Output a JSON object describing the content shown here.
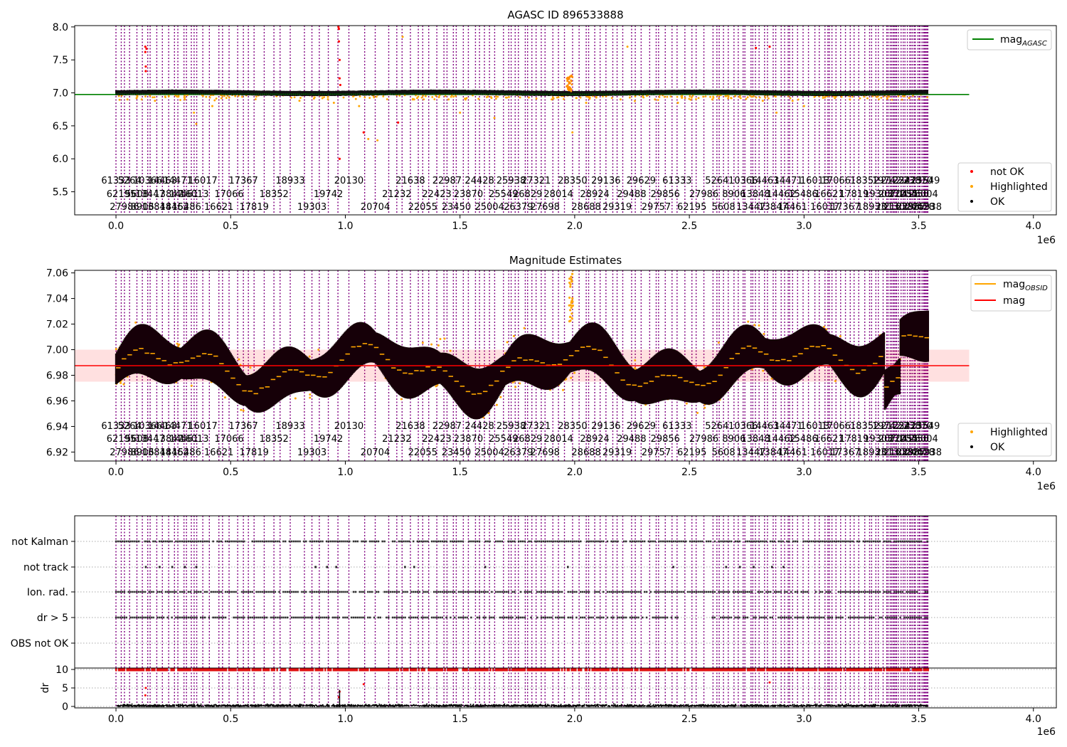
{
  "chart_data": [
    {
      "id": "p1",
      "type": "scatter",
      "title": "AGASC ID 896533888",
      "xlim": [
        -180000,
        4100000
      ],
      "ylim": [
        5.15,
        8.02
      ],
      "xticks": [
        0,
        500000,
        1000000,
        1500000,
        2000000,
        2500000,
        3000000,
        3500000,
        4000000
      ],
      "xtick_labels": [
        "0.0",
        "0.5",
        "1.0",
        "1.5",
        "2.0",
        "2.5",
        "3.0",
        "3.5",
        "4.0"
      ],
      "yticks": [
        5.5,
        6.0,
        6.5,
        7.0,
        7.5,
        8.0
      ],
      "ytick_labels": [
        "5.5",
        "6.0",
        "6.5",
        "7.0",
        "7.5",
        "8.0"
      ],
      "x_offset_label": "1e6",
      "legend_upper": [
        {
          "label": "mag",
          "subscript": "AGASC",
          "color": "#008000",
          "kind": "line"
        }
      ],
      "legend_lower": [
        {
          "label": "not OK",
          "color": "#ff0000",
          "kind": "dot"
        },
        {
          "label": "Highlighted",
          "color": "#ffa500",
          "kind": "dot"
        },
        {
          "label": "OK",
          "color": "#000000",
          "kind": "dot"
        }
      ],
      "reference_line": {
        "series": "mag_AGASC",
        "value": 6.975,
        "color": "#008000",
        "x_range": [
          -180000,
          3720000
        ]
      },
      "series": [
        {
          "name": "OK",
          "color": "#000000",
          "values_summary": "dense band at ~6.97-7.02 across x 0 to 3.54e6"
        },
        {
          "name": "Highlighted",
          "color": "#ffa500",
          "points": [
            [
              50000,
              6.9
            ],
            [
              90000,
              6.92
            ],
            [
              170000,
              6.88
            ],
            [
              230000,
              6.95
            ],
            [
              300000,
              6.9
            ],
            [
              340000,
              6.7
            ],
            [
              350000,
              6.53
            ],
            [
              420000,
              6.8
            ],
            [
              460000,
              6.92
            ],
            [
              520000,
              6.95
            ],
            [
              700000,
              6.95
            ],
            [
              800000,
              6.88
            ],
            [
              860000,
              6.96
            ],
            [
              900000,
              6.92
            ],
            [
              950000,
              6.85
            ],
            [
              980000,
              6.97
            ],
            [
              1060000,
              6.8
            ],
            [
              1100000,
              6.3
            ],
            [
              1140000,
              6.28
            ],
            [
              1250000,
              7.85
            ],
            [
              1300000,
              6.9
            ],
            [
              1350000,
              6.95
            ],
            [
              1450000,
              6.9
            ],
            [
              1500000,
              6.7
            ],
            [
              1650000,
              6.62
            ],
            [
              1800000,
              6.93
            ],
            [
              1900000,
              6.9
            ],
            [
              1950000,
              6.95
            ],
            [
              1990000,
              6.4
            ],
            [
              2050000,
              6.85
            ],
            [
              2200000,
              6.9
            ],
            [
              2230000,
              7.7
            ],
            [
              2350000,
              6.9
            ],
            [
              2450000,
              6.85
            ],
            [
              2600000,
              6.9
            ],
            [
              2700000,
              6.95
            ],
            [
              2820000,
              6.88
            ],
            [
              2880000,
              6.7
            ],
            [
              2950000,
              6.88
            ],
            [
              3000000,
              6.8
            ],
            [
              3100000,
              6.95
            ],
            [
              3200000,
              6.9
            ],
            [
              3300000,
              6.95
            ]
          ]
        },
        {
          "name": "not OK",
          "color": "#ff0000",
          "points": [
            [
              128000,
              7.7
            ],
            [
              128000,
              7.62
            ],
            [
              130000,
              7.4
            ],
            [
              130000,
              7.33
            ],
            [
              133000,
              7.67
            ],
            [
              970000,
              8.0
            ],
            [
              972000,
              7.97
            ],
            [
              972000,
              7.78
            ],
            [
              975000,
              7.5
            ],
            [
              975000,
              7.22
            ],
            [
              978000,
              7.12
            ],
            [
              975000,
              6.0
            ],
            [
              1080000,
              6.4
            ],
            [
              1230000,
              6.55
            ],
            [
              2790000,
              7.68
            ],
            [
              2850000,
              7.7
            ]
          ]
        },
        {
          "name": "not OK excursion near 2.0e6",
          "color": "#ff0000",
          "x_range": [
            1965000,
            1990000
          ],
          "y_range": [
            7.0,
            7.27
          ]
        }
      ]
    },
    {
      "id": "p2",
      "type": "scatter",
      "title": "Magnitude Estimates",
      "xlim": [
        -180000,
        4100000
      ],
      "ylim": [
        6.913,
        7.062
      ],
      "xticks": [
        0,
        500000,
        1000000,
        1500000,
        2000000,
        2500000,
        3000000,
        3500000,
        4000000
      ],
      "xtick_labels": [
        "0.0",
        "0.5",
        "1.0",
        "1.5",
        "2.0",
        "2.5",
        "3.0",
        "3.5",
        "4.0"
      ],
      "yticks": [
        6.92,
        6.94,
        6.96,
        6.98,
        7.0,
        7.02,
        7.04,
        7.06
      ],
      "ytick_labels": [
        "6.92",
        "6.94",
        "6.96",
        "6.98",
        "7.00",
        "7.02",
        "7.04",
        "7.06"
      ],
      "x_offset_label": "1e6",
      "legend_upper": [
        {
          "label": "mag",
          "subscript": "OBSID",
          "color": "#ffa500",
          "kind": "line"
        },
        {
          "label": "mag",
          "subscript": "",
          "color": "#ff0000",
          "kind": "line"
        }
      ],
      "legend_lower": [
        {
          "label": "Highlighted",
          "color": "#ffa500",
          "kind": "dot"
        },
        {
          "label": "OK",
          "color": "#000000",
          "kind": "dot"
        }
      ],
      "mag": {
        "value": 6.9875,
        "band": [
          6.975,
          7.0
        ],
        "color": "#ff0000",
        "x_range": [
          -180000,
          3720000
        ]
      },
      "series": [
        {
          "name": "OK",
          "color": "#000000",
          "values_summary": "dense envelope of per-observation estimates, ~6.96-7.02"
        },
        {
          "name": "Highlighted",
          "color": "#ffa500",
          "values_summary": "scatter around the OK envelope, reaching 6.915 and 7.06"
        }
      ]
    },
    {
      "id": "p3",
      "type": "scatter",
      "categories": [
        "not Kalman",
        "not track",
        "Ion. rad.",
        "dr > 5",
        "OBS not OK"
      ],
      "xlim": [
        -180000,
        4100000
      ],
      "xticks": [
        0,
        500000,
        1000000,
        1500000,
        2000000,
        2500000,
        3000000,
        3500000,
        4000000
      ],
      "xtick_labels": [
        "0.0",
        "0.5",
        "1.0",
        "1.5",
        "2.0",
        "2.5",
        "3.0",
        "3.5",
        "4.0"
      ],
      "x_offset_label": "1e6",
      "flag_points": {
        "not track": [
          130000,
          190000,
          245000,
          300000,
          350000,
          870000,
          920000,
          960000,
          1260000,
          1300000,
          1610000,
          1970000,
          2430000,
          2660000,
          2720000,
          2780000,
          2860000,
          2910000
        ],
        "OBS not OK": []
      },
      "flag_ranges": {
        "not Kalman": [
          [
            0,
            3540000
          ]
        ],
        "Ion. rad.": [
          [
            0,
            3540000
          ]
        ],
        "dr > 5": [
          [
            0,
            2450000
          ],
          [
            2600000,
            3540000
          ]
        ]
      }
    },
    {
      "id": "p4",
      "type": "scatter",
      "ylabel": "dr",
      "ylim": [
        -0.5,
        10.3
      ],
      "yticks": [
        0,
        5,
        10
      ],
      "ytick_labels": [
        "0",
        "5",
        "10"
      ],
      "xlim": [
        -180000,
        4100000
      ],
      "threshold_line": 10,
      "series": [
        {
          "name": "dr",
          "color": "#000000",
          "values_summary": "mostly 0-1"
        },
        {
          "name": "dr not OK",
          "color": "#ff0000",
          "points": [
            [
              128000,
              3
            ],
            [
              130000,
              5
            ],
            [
              975000,
              4
            ],
            [
              972000,
              2.5
            ],
            [
              1080000,
              6
            ],
            [
              2850000,
              6.5
            ]
          ]
        }
      ]
    }
  ],
  "obsid_labels": [
    "61333",
    "62195",
    "27986",
    "5264",
    "5608",
    "8906",
    "10366",
    "13447",
    "13848",
    "14463",
    "13847",
    "14462",
    "14471",
    "14461",
    "15486",
    "16013",
    "16017",
    "16621",
    "17066",
    "17367",
    "17819",
    "18352",
    "18933",
    "19303",
    "19742",
    "20130",
    "20704",
    "21232",
    "21638",
    "22055",
    "22423",
    "22987",
    "23450",
    "23870",
    "24428",
    "25004",
    "25549",
    "25938",
    "26379",
    "26829",
    "27321",
    "27698",
    "28014",
    "28350",
    "28688",
    "28924",
    "29136",
    "29319",
    "29488",
    "29629",
    "29757",
    "29856"
  ]
}
